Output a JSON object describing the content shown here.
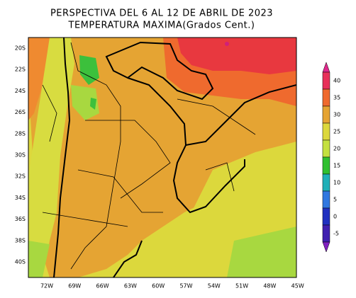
{
  "map": {
    "title": [
      "PERSPECTIVA DEL 6 AL 12 DE ABRIL DE 2023",
      "TEMPERATURA MAXIMA(Grados Cent.)"
    ],
    "lat_labels": [
      "20S",
      "22S",
      "24S",
      "26S",
      "28S",
      "30S",
      "32S",
      "34S",
      "36S",
      "38S",
      "40S"
    ],
    "lon_labels": [
      "72W",
      "69W",
      "66W",
      "63W",
      "60W",
      "57W",
      "54W",
      "51W",
      "48W",
      "45W"
    ],
    "colorbar_labels": [
      "40",
      "35",
      "30",
      "25",
      "20",
      "15",
      "10",
      "5",
      "0",
      "-5"
    ]
  }
}
